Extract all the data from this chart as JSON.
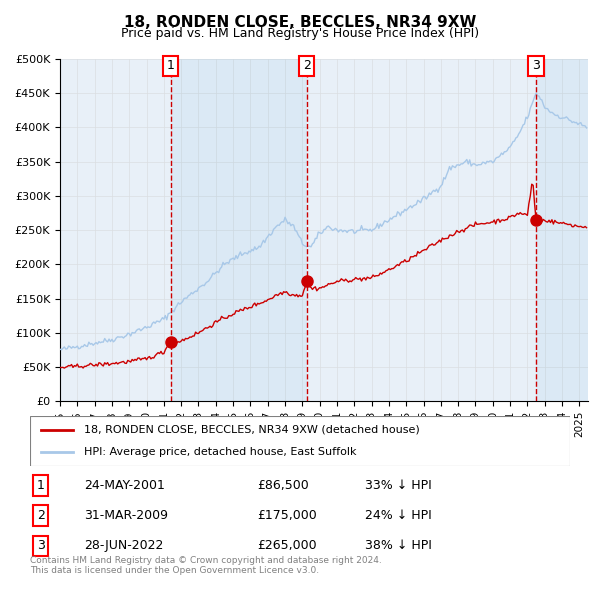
{
  "title": "18, RONDEN CLOSE, BECCLES, NR34 9XW",
  "subtitle": "Price paid vs. HM Land Registry's House Price Index (HPI)",
  "footer": "Contains HM Land Registry data © Crown copyright and database right 2024.\nThis data is licensed under the Open Government Licence v3.0.",
  "legend_line1": "18, RONDEN CLOSE, BECCLES, NR34 9XW (detached house)",
  "legend_line2": "HPI: Average price, detached house, East Suffolk",
  "transactions": [
    {
      "num": 1,
      "date": "24-MAY-2001",
      "x": 2001.39,
      "price": 86500,
      "label": "33% ↓ HPI"
    },
    {
      "num": 2,
      "date": "31-MAR-2009",
      "x": 2009.25,
      "price": 175000,
      "label": "24% ↓ HPI"
    },
    {
      "num": 3,
      "date": "28-JUN-2022",
      "x": 2022.49,
      "price": 265000,
      "label": "38% ↓ HPI"
    }
  ],
  "hpi_color": "#a8c8e8",
  "price_color": "#cc0000",
  "dashed_color": "#cc0000",
  "bg_color": "#e8f0f8",
  "plot_bg": "#ffffff",
  "grid_color": "#cccccc",
  "ylim": [
    0,
    500000
  ],
  "xlim_start": 1995.0,
  "xlim_end": 2025.5,
  "yticks": [
    0,
    50000,
    100000,
    150000,
    200000,
    250000,
    300000,
    350000,
    400000,
    450000,
    500000
  ],
  "ylabel_format": "£{0}K"
}
